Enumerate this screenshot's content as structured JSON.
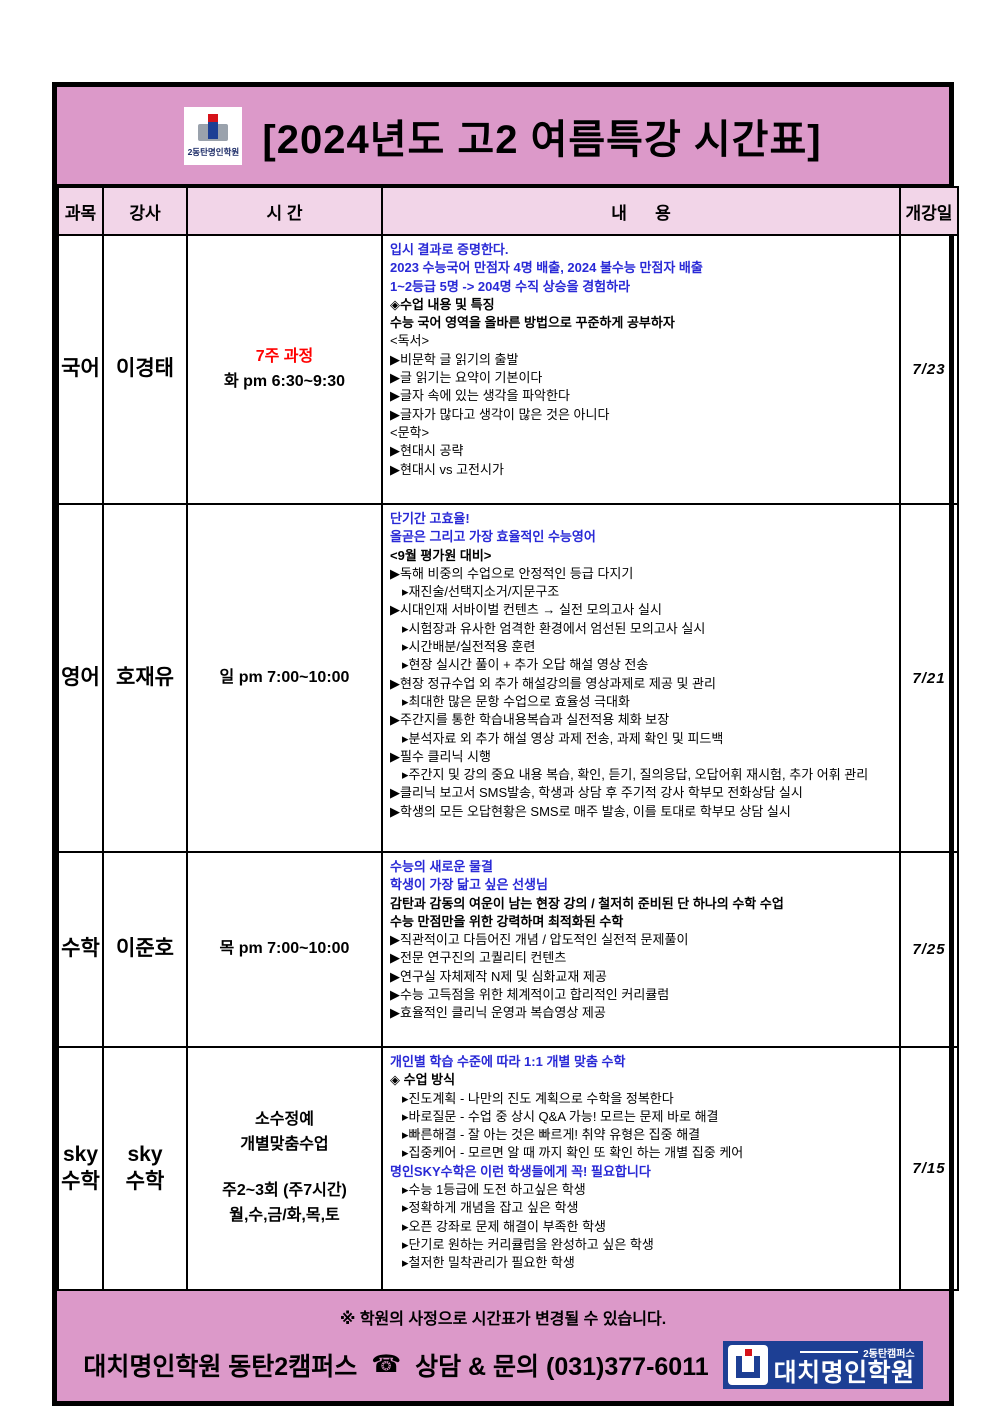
{
  "title": "[2024년도 고2 여름특강 시간표]",
  "top_logo": {
    "label": "2동탄명인학원"
  },
  "columns": [
    "과목",
    "강사",
    "시 간",
    "내      용",
    "개강일"
  ],
  "rows": [
    {
      "subject": "국어",
      "teacher": "이경태",
      "time": [
        {
          "text": "7주 과정",
          "style": "red"
        },
        {
          "text": "화  pm 6:30~9:30",
          "style": "bold"
        }
      ],
      "start_date": "7/23",
      "content": [
        {
          "text": "입시 결과로 증명한다.",
          "style": "blue"
        },
        {
          "text": "2023 수능국어 만점자 4명 배출, 2024 불수능 만점자 배출",
          "style": "blue"
        },
        {
          "text": "1~2등급 5명 -> 204명 수직 상승을 경험하라",
          "style": "blue"
        },
        {
          "text": "◈수업 내용 및 특징",
          "style": "bold"
        },
        {
          "text": "수능 국어 영역을 올바른 방법으로 꾸준하게 공부하자",
          "style": "bold"
        },
        {
          "text": "<독서>",
          "style": "normal"
        },
        {
          "text": "▶비문학 글 읽기의 출발",
          "style": "normal"
        },
        {
          "text": "▶글 읽기는 요약이 기본이다",
          "style": "normal"
        },
        {
          "text": "▶글자 속에 있는 생각을 파악한다",
          "style": "normal"
        },
        {
          "text": "▶글자가 많다고 생각이 많은 것은 아니다",
          "style": "normal"
        },
        {
          "text": "<문학>",
          "style": "normal"
        },
        {
          "text": "▶현대시 공략",
          "style": "normal"
        },
        {
          "text": "▶현대시 vs 고전시가",
          "style": "normal"
        }
      ]
    },
    {
      "subject": "영어",
      "teacher": "호재유",
      "time": [
        {
          "text": "일  pm 7:00~10:00",
          "style": "bold"
        }
      ],
      "start_date": "7/21",
      "content": [
        {
          "text": "단기간 고효율!",
          "style": "blue"
        },
        {
          "text": "올곧은 그리고 가장 효율적인 수능영어",
          "style": "blue"
        },
        {
          "text": "<9월 평가원 대비>",
          "style": "bold"
        },
        {
          "text": "▶독해 비중의 수업으로 안정적인 등급 다지기",
          "style": "normal"
        },
        {
          "text": "▸재진술/선택지소거/지문구조",
          "style": "normal",
          "indent": true
        },
        {
          "text": "▶시대인재 서바이벌 컨텐츠 → 실전 모의고사 실시",
          "style": "normal"
        },
        {
          "text": "▸시험장과 유사한 엄격한 환경에서 엄선된 모의고사 실시",
          "style": "normal",
          "indent": true
        },
        {
          "text": "▸시간배분/실전적용 훈련",
          "style": "normal",
          "indent": true
        },
        {
          "text": "▸현장 실시간 풀이 + 추가 오답 해설 영상 전송",
          "style": "normal",
          "indent": true
        },
        {
          "text": "▶현장 정규수업 외 추가 해설강의를 영상과제로 제공 및 관리",
          "style": "normal"
        },
        {
          "text": "▸최대한 많은 문항 수업으로 효율성 극대화",
          "style": "normal",
          "indent": true
        },
        {
          "text": "▶주간지를 통한 학습내용복습과 실전적용 체화 보장",
          "style": "normal"
        },
        {
          "text": "▸분석자료 외 추가 해설 영상 과제 전송, 과제 확인 및 피드백",
          "style": "normal",
          "indent": true
        },
        {
          "text": "▶필수 클리닉 시행",
          "style": "normal"
        },
        {
          "text": "▸주간지 및 강의 중요 내용 복습, 확인, 듣기, 질의응답, 오답어휘 재시험, 추가 어휘 관리",
          "style": "normal",
          "indent": true
        },
        {
          "text": "▶클리닉 보고서 SMS발송, 학생과 상담 후 주기적 강사 학부모 전화상담 실시",
          "style": "normal"
        },
        {
          "text": "▶학생의 모든 오답현황은 SMS로 매주 발송, 이를 토대로 학부모 상담 실시",
          "style": "normal"
        }
      ]
    },
    {
      "subject": "수학",
      "teacher": "이준호",
      "time": [
        {
          "text": "목  pm 7:00~10:00",
          "style": "bold"
        }
      ],
      "start_date": "7/25",
      "content": [
        {
          "text": "수능의 새로운 물결",
          "style": "blue"
        },
        {
          "text": "학생이 가장 닮고 싶은 선생님",
          "style": "blue"
        },
        {
          "text": "감탄과 감동의 여운이 남는 현장 강의 / 철저히 준비된 단 하나의 수학 수업",
          "style": "bold"
        },
        {
          "text": "수능 만점만을 위한 강력하며 최적화된 수학",
          "style": "bold"
        },
        {
          "text": "▶직관적이고 다듬어진 개념 / 압도적인 실전적 문제풀이",
          "style": "normal"
        },
        {
          "text": "▶전문 연구진의 고퀄리티 컨텐츠",
          "style": "normal"
        },
        {
          "text": "▶연구실 자체제작 N제 및 심화교재 제공",
          "style": "normal"
        },
        {
          "text": "▶수능 고득점을 위한 체계적이고 합리적인 커리큘럼",
          "style": "normal"
        },
        {
          "text": "▶효율적인 클리닉 운영과 복습영상 제공",
          "style": "normal"
        }
      ]
    },
    {
      "subject": "sky\n수학",
      "teacher": "sky\n수학",
      "time": [
        {
          "text": "소수정예",
          "style": "bold"
        },
        {
          "text": "개별맞춤수업",
          "style": "bold"
        },
        {
          "text": "",
          "style": "bold"
        },
        {
          "text": "주2~3회 (주7시간)",
          "style": "bold"
        },
        {
          "text": "월,수,금/화,목,토",
          "style": "bold"
        }
      ],
      "start_date": "7/15",
      "content": [
        {
          "text": "개인별 학습 수준에 따라 1:1 개별 맞춤 수학",
          "style": "blue"
        },
        {
          "text": "◈ 수업 방식",
          "style": "bold"
        },
        {
          "text": "▸진도계획 - 나만의 진도 계획으로 수학을 정복한다",
          "style": "normal",
          "indent": true
        },
        {
          "text": "▸바로질문 - 수업 중 상시 Q&A 가능! 모르는 문제 바로 해결",
          "style": "normal",
          "indent": true
        },
        {
          "text": "▸빠른해결 - 잘 아는 것은 빠르게! 취약 유형은 집중 해결",
          "style": "normal",
          "indent": true
        },
        {
          "text": "▸집중케어 - 모르면 알 때 까지 확인 또 확인 하는 개별 집중 케어",
          "style": "normal",
          "indent": true
        },
        {
          "text": "명인SKY수학은 이런 학생들에게 꼭! 필요합니다",
          "style": "blue"
        },
        {
          "text": "▸수능 1등급에 도전 하고싶은 학생",
          "style": "normal",
          "indent": true
        },
        {
          "text": "▸정확하게 개념을 잡고 싶은 학생",
          "style": "normal",
          "indent": true
        },
        {
          "text": "▸오픈 강좌로 문제 해결이 부족한 학생",
          "style": "normal",
          "indent": true
        },
        {
          "text": "▸단기로 원하는 커리큘럼을 완성하고 싶은 학생",
          "style": "normal",
          "indent": true
        },
        {
          "text": "▸철저한 밀착관리가 필요한 학생",
          "style": "normal",
          "indent": true
        }
      ]
    }
  ],
  "footer": {
    "notice": "※ 학원의 사정으로 시간표가 변경될 수 있습니다.",
    "contact_left": "대치명인학원 동탄2캠퍼스",
    "phone_icon": "☎",
    "contact_right": "상담 & 문의 (031)377-6011",
    "brand_logo": {
      "campus": "2동탄캠퍼스",
      "name": "대치명인학원"
    }
  },
  "colors": {
    "band_pink": "#DC99C9",
    "header_pink": "#F2D5E8",
    "text_blue": "#2929D6",
    "text_red": "#FF0000",
    "brand_navy": "#1D3F94"
  }
}
